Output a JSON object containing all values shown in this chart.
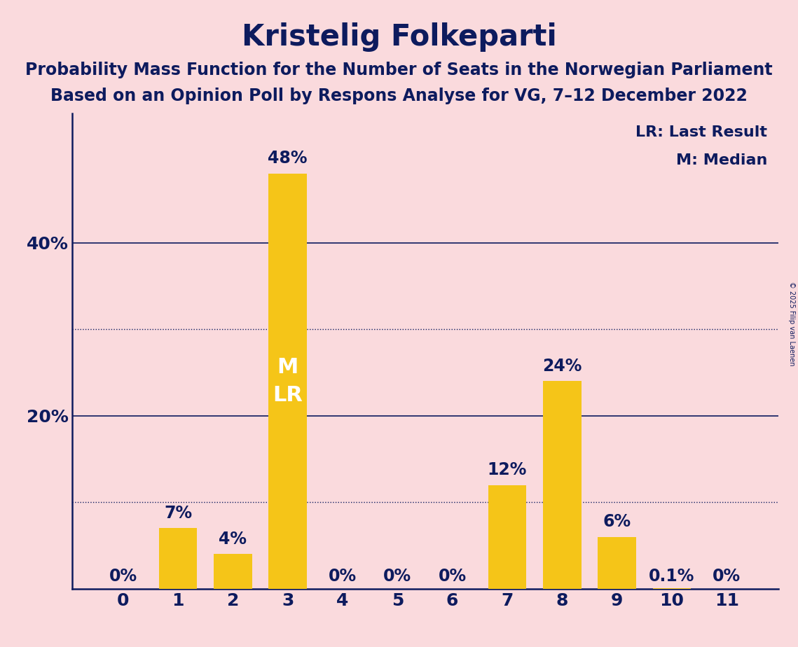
{
  "title": "Kristelig Folkeparti",
  "subtitle1": "Probability Mass Function for the Number of Seats in the Norwegian Parliament",
  "subtitle2": "Based on an Opinion Poll by Respons Analyse for VG, 7–12 December 2022",
  "copyright": "© 2025 Filip van Laenen",
  "legend_lr": "LR: Last Result",
  "legend_m": "M: Median",
  "categories": [
    0,
    1,
    2,
    3,
    4,
    5,
    6,
    7,
    8,
    9,
    10,
    11
  ],
  "values": [
    0.0,
    7.0,
    4.0,
    48.0,
    0.0,
    0.0,
    0.0,
    12.0,
    24.0,
    6.0,
    0.1,
    0.0
  ],
  "labels": [
    "0%",
    "7%",
    "4%",
    "48%",
    "0%",
    "0%",
    "0%",
    "12%",
    "24%",
    "6%",
    "0.1%",
    "0%"
  ],
  "bar_color": "#F5C518",
  "background_color": "#FADADD",
  "text_color": "#0D1B5E",
  "label_color_on_bar": "#FFFFFF",
  "ylim": [
    0,
    55
  ],
  "solid_hlines": [
    20.0,
    40.0
  ],
  "dotted_hlines": [
    10.0,
    30.0
  ],
  "median_seat": 3,
  "last_result_seat": 3,
  "title_fontsize": 30,
  "subtitle_fontsize": 17,
  "bar_label_fontsize": 17,
  "axis_tick_fontsize": 18,
  "legend_fontsize": 16,
  "on_bar_label_fontsize": 22
}
